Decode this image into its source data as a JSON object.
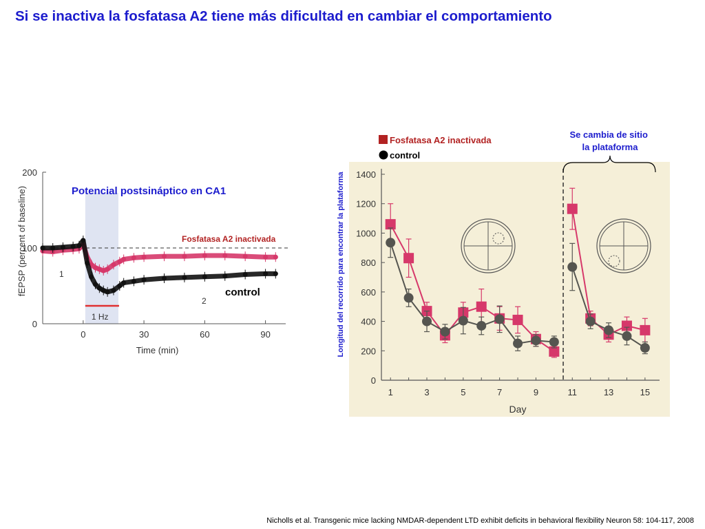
{
  "title": "Si se inactiva la fosfatasa A2 tiene más dificultad en cambiar el comportamiento",
  "citation": "Nicholls et al. Transgenic mice lacking NMDAR-dependent LTD exhibit deficits in behavioral flexibility Neuron 58: 104-117, 2008",
  "colors": {
    "title": "#1c1ccd",
    "red_label": "#b22222",
    "pink_series": "#d6386a",
    "black_series": "#111111",
    "gray_series": "#555550",
    "beige_bg": "#f5efd8"
  },
  "chart_data": [
    {
      "type": "scatter",
      "title": "Potencial postsináptico en CA1",
      "xlabel": "Time (min)",
      "ylabel": "fEPSP (percent of baseline)",
      "xlim": [
        -20,
        100
      ],
      "ylim": [
        0,
        200
      ],
      "xticks": [
        "0",
        "30",
        "60",
        "90"
      ],
      "yticks": [
        "0",
        "100",
        "200"
      ],
      "stim_label": "1 Hz",
      "stim_window": [
        0,
        15
      ],
      "baseline": 100,
      "marker_1": "1",
      "marker_2": "2",
      "series": [
        {
          "name": "Fosfatasa A2 inactivada",
          "color": "#d6386a",
          "x": [
            -20,
            -15,
            -10,
            -5,
            -2,
            0,
            2,
            4,
            6,
            8,
            10,
            12,
            15,
            18,
            20,
            25,
            30,
            40,
            50,
            60,
            70,
            80,
            90,
            95
          ],
          "y": [
            96,
            95,
            97,
            98,
            99,
            105,
            88,
            78,
            74,
            72,
            70,
            72,
            78,
            82,
            85,
            87,
            88,
            89,
            89,
            90,
            90,
            89,
            88,
            88
          ]
        },
        {
          "name": "control",
          "color": "#111111",
          "x": [
            -20,
            -15,
            -10,
            -5,
            -2,
            0,
            2,
            4,
            6,
            8,
            10,
            12,
            15,
            18,
            20,
            25,
            30,
            40,
            50,
            60,
            70,
            80,
            90,
            95
          ],
          "y": [
            100,
            100,
            101,
            102,
            103,
            110,
            80,
            62,
            52,
            47,
            44,
            42,
            44,
            50,
            54,
            56,
            58,
            60,
            61,
            62,
            63,
            65,
            66,
            66
          ]
        }
      ]
    },
    {
      "type": "line",
      "xlabel": "Day",
      "ylabel": "Longitud del recorrido para encontrar la plataforma",
      "ylim": [
        0,
        1400
      ],
      "xticks": [
        "1",
        "3",
        "5",
        "7",
        "9",
        "11",
        "13",
        "15"
      ],
      "yticks": [
        "0",
        "200",
        "400",
        "600",
        "800",
        "1000",
        "1200",
        "1400"
      ],
      "annotation": "Se cambia de sitio la plataforma",
      "platform_change_after_day": 10,
      "legend": [
        {
          "name": "Fosfatasa A2 inactivada",
          "marker": "square"
        },
        {
          "name": "control",
          "marker": "circle"
        }
      ],
      "series": [
        {
          "name": "Fosfatasa A2 inactivada",
          "color": "#d6386a",
          "x": [
            1,
            2,
            3,
            4,
            5,
            6,
            7,
            8,
            9,
            10
          ],
          "y": [
            1060,
            830,
            470,
            305,
            460,
            500,
            420,
            410,
            280,
            195
          ],
          "err": [
            140,
            130,
            60,
            50,
            70,
            120,
            80,
            90,
            50,
            40
          ]
        },
        {
          "name": "Fosfatasa A2 inactivada",
          "color": "#d6386a",
          "x": [
            11,
            12,
            13,
            14,
            15
          ],
          "y": [
            1165,
            420,
            310,
            370,
            340
          ],
          "err": [
            140,
            50,
            50,
            60,
            80
          ]
        },
        {
          "name": "control",
          "color": "#555550",
          "x": [
            1,
            2,
            3,
            4,
            5,
            6,
            7,
            8,
            9,
            10
          ],
          "y": [
            935,
            560,
            400,
            330,
            405,
            370,
            415,
            250,
            270,
            260
          ],
          "err": [
            100,
            60,
            70,
            50,
            90,
            60,
            90,
            50,
            40,
            40
          ]
        },
        {
          "name": "control",
          "color": "#555550",
          "x": [
            11,
            12,
            13,
            14,
            15
          ],
          "y": [
            770,
            400,
            340,
            300,
            220
          ],
          "err": [
            160,
            50,
            50,
            60,
            40
          ]
        }
      ]
    }
  ]
}
